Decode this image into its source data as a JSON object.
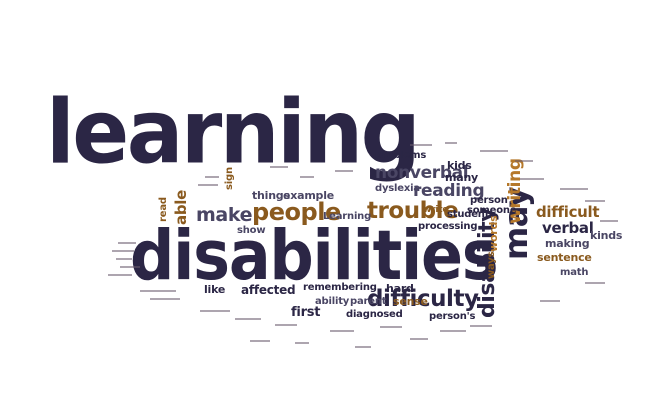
{
  "word_cloud": {
    "big": {
      "learning": "learning",
      "disabilities": "disabilities"
    },
    "medium": {
      "people": "people",
      "trouble": "trouble",
      "difficulty": "difficulty",
      "may": "may",
      "disability": "disability",
      "writing": "writing",
      "nonverbal": "nonverbal",
      "reading": "reading",
      "make": "make",
      "difficult": "difficult",
      "verbal": "verbal",
      "able": "able"
    },
    "small": {
      "problems": "problems",
      "kids": "kids",
      "many": "many",
      "dyslexia": "dyslexia",
      "things": "things",
      "example": "example",
      "show": "show",
      "sign": "sign",
      "read": "read",
      "like": "like",
      "affected": "affected",
      "remembering": "remembering",
      "hard": "hard",
      "ability": "ability",
      "parent": "parent",
      "sense": "sense",
      "first": "first",
      "diagnosed": "diagnosed",
      "person": "person",
      "persons": "person's",
      "student": "student",
      "processing": "processing",
      "someone": "someone",
      "write": "write",
      "learning_cap": "Learning",
      "kinds": "kinds",
      "making": "making",
      "sentence": "sentence",
      "math": "math",
      "words": "words",
      "ways": "ways"
    }
  },
  "colors": {
    "navy": "#2b2645",
    "brown": "#8a5a1e",
    "amber": "#b5782a",
    "slate": "#4a4664",
    "background": "#ffffff"
  }
}
